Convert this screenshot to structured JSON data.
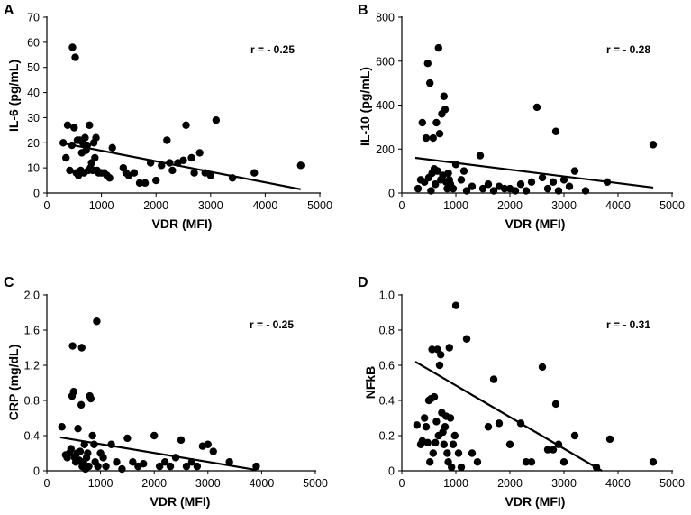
{
  "chart_data": [
    {
      "panel": "A",
      "type": "scatter",
      "xlabel": "VDR (MFI)",
      "ylabel": "IL-6 (pg/mL)",
      "xlim": [
        0,
        5000
      ],
      "ylim": [
        0,
        70
      ],
      "xticks": [
        0,
        1000,
        2000,
        3000,
        4000,
        5000
      ],
      "yticks": [
        0,
        10,
        20,
        30,
        40,
        50,
        60,
        70
      ],
      "annotation": "r = - 0.25",
      "fit_line": [
        [
          250,
          20
        ],
        [
          4650,
          1.5
        ]
      ],
      "points": [
        [
          300,
          20
        ],
        [
          350,
          14
        ],
        [
          380,
          27
        ],
        [
          420,
          9
        ],
        [
          460,
          19
        ],
        [
          470,
          58
        ],
        [
          500,
          26
        ],
        [
          520,
          54
        ],
        [
          540,
          8
        ],
        [
          560,
          21
        ],
        [
          580,
          7
        ],
        [
          600,
          21
        ],
        [
          620,
          9
        ],
        [
          640,
          16
        ],
        [
          660,
          20
        ],
        [
          680,
          8
        ],
        [
          700,
          22
        ],
        [
          720,
          17
        ],
        [
          740,
          19
        ],
        [
          760,
          9
        ],
        [
          780,
          27
        ],
        [
          800,
          10
        ],
        [
          820,
          12
        ],
        [
          840,
          9
        ],
        [
          860,
          20
        ],
        [
          880,
          14
        ],
        [
          900,
          22
        ],
        [
          920,
          9
        ],
        [
          950,
          8
        ],
        [
          1000,
          8
        ],
        [
          1050,
          8
        ],
        [
          1100,
          7
        ],
        [
          1150,
          6
        ],
        [
          1200,
          18
        ],
        [
          1400,
          10
        ],
        [
          1450,
          8
        ],
        [
          1500,
          7
        ],
        [
          1600,
          8
        ],
        [
          1700,
          4
        ],
        [
          1800,
          4
        ],
        [
          1900,
          12
        ],
        [
          2000,
          5
        ],
        [
          2100,
          11
        ],
        [
          2200,
          21
        ],
        [
          2250,
          12
        ],
        [
          2300,
          9
        ],
        [
          2400,
          12
        ],
        [
          2500,
          13
        ],
        [
          2550,
          27
        ],
        [
          2650,
          14
        ],
        [
          2700,
          8
        ],
        [
          2800,
          16
        ],
        [
          2900,
          8
        ],
        [
          3000,
          7
        ],
        [
          3100,
          29
        ],
        [
          3400,
          6
        ],
        [
          3800,
          8
        ],
        [
          4650,
          11
        ]
      ]
    },
    {
      "panel": "B",
      "type": "scatter",
      "xlabel": "VDR (MFI)",
      "ylabel": "IL-10 (pg/mL)",
      "xlim": [
        0,
        5000
      ],
      "ylim": [
        0,
        800
      ],
      "xticks": [
        0,
        1000,
        2000,
        3000,
        4000,
        5000
      ],
      "yticks": [
        0,
        200,
        400,
        600,
        800
      ],
      "annotation": "r = - 0.28",
      "fit_line": [
        [
          250,
          160
        ],
        [
          4650,
          25
        ]
      ],
      "points": [
        [
          300,
          20
        ],
        [
          350,
          60
        ],
        [
          380,
          320
        ],
        [
          420,
          50
        ],
        [
          450,
          250
        ],
        [
          480,
          590
        ],
        [
          500,
          70
        ],
        [
          520,
          500
        ],
        [
          540,
          10
        ],
        [
          560,
          90
        ],
        [
          580,
          250
        ],
        [
          600,
          110
        ],
        [
          620,
          40
        ],
        [
          640,
          320
        ],
        [
          660,
          100
        ],
        [
          680,
          660
        ],
        [
          700,
          270
        ],
        [
          720,
          60
        ],
        [
          740,
          360
        ],
        [
          760,
          80
        ],
        [
          780,
          440
        ],
        [
          800,
          380
        ],
        [
          820,
          50
        ],
        [
          840,
          20
        ],
        [
          860,
          90
        ],
        [
          880,
          60
        ],
        [
          900,
          40
        ],
        [
          950,
          20
        ],
        [
          1000,
          130
        ],
        [
          1100,
          60
        ],
        [
          1150,
          100
        ],
        [
          1200,
          10
        ],
        [
          1300,
          30
        ],
        [
          1450,
          170
        ],
        [
          1500,
          20
        ],
        [
          1600,
          40
        ],
        [
          1700,
          10
        ],
        [
          1800,
          30
        ],
        [
          1900,
          20
        ],
        [
          2000,
          20
        ],
        [
          2100,
          10
        ],
        [
          2200,
          40
        ],
        [
          2300,
          10
        ],
        [
          2400,
          50
        ],
        [
          2500,
          390
        ],
        [
          2600,
          70
        ],
        [
          2700,
          20
        ],
        [
          2800,
          50
        ],
        [
          2850,
          280
        ],
        [
          2900,
          10
        ],
        [
          3000,
          60
        ],
        [
          3100,
          30
        ],
        [
          3200,
          100
        ],
        [
          3400,
          10
        ],
        [
          3800,
          50
        ],
        [
          4650,
          220
        ]
      ]
    },
    {
      "panel": "C",
      "type": "scatter",
      "xlabel": "VDR (MFI)",
      "ylabel": "CRP (mg/dL)",
      "xlim": [
        0,
        5000
      ],
      "ylim": [
        0,
        2.0
      ],
      "xticks": [
        0,
        1000,
        2000,
        3000,
        4000,
        5000
      ],
      "yticks": [
        0,
        0.4,
        0.8,
        1.2,
        1.6,
        2.0
      ],
      "ytick_labels": [
        "0",
        "0.4",
        "0.8",
        "1.2",
        "1.6",
        "2.0"
      ],
      "annotation": "r = - 0.25",
      "fit_line": [
        [
          250,
          0.38
        ],
        [
          3900,
          0.01
        ]
      ],
      "points": [
        [
          280,
          0.5
        ],
        [
          350,
          0.18
        ],
        [
          380,
          0.15
        ],
        [
          420,
          0.2
        ],
        [
          450,
          0.25
        ],
        [
          470,
          0.85
        ],
        [
          480,
          1.42
        ],
        [
          500,
          0.9
        ],
        [
          520,
          0.15
        ],
        [
          540,
          0.1
        ],
        [
          560,
          0.2
        ],
        [
          580,
          0.48
        ],
        [
          600,
          0.12
        ],
        [
          620,
          0.22
        ],
        [
          640,
          0.75
        ],
        [
          650,
          1.4
        ],
        [
          660,
          0.05
        ],
        [
          680,
          0.1
        ],
        [
          700,
          0.3
        ],
        [
          720,
          0.02
        ],
        [
          740,
          0.15
        ],
        [
          760,
          0.2
        ],
        [
          780,
          0.05
        ],
        [
          800,
          0.85
        ],
        [
          820,
          0.82
        ],
        [
          850,
          0.4
        ],
        [
          880,
          0.3
        ],
        [
          900,
          0.1
        ],
        [
          930,
          1.7
        ],
        [
          950,
          0.05
        ],
        [
          1000,
          0.2
        ],
        [
          1050,
          0.15
        ],
        [
          1100,
          0.05
        ],
        [
          1200,
          0.3
        ],
        [
          1300,
          0.1
        ],
        [
          1400,
          0.02
        ],
        [
          1500,
          0.37
        ],
        [
          1600,
          0.1
        ],
        [
          1700,
          0.05
        ],
        [
          1800,
          0.08
        ],
        [
          2000,
          0.4
        ],
        [
          2100,
          0.05
        ],
        [
          2200,
          0.1
        ],
        [
          2300,
          0.05
        ],
        [
          2400,
          0.15
        ],
        [
          2500,
          0.35
        ],
        [
          2600,
          0.05
        ],
        [
          2700,
          0.1
        ],
        [
          2800,
          0.05
        ],
        [
          2900,
          0.28
        ],
        [
          3000,
          0.3
        ],
        [
          3100,
          0.22
        ],
        [
          3400,
          0.1
        ],
        [
          3900,
          0.05
        ]
      ]
    },
    {
      "panel": "D",
      "type": "scatter",
      "xlabel": "VDR (MFI)",
      "ylabel": "NFkB",
      "xlim": [
        0,
        5000
      ],
      "ylim": [
        0,
        1.0
      ],
      "xticks": [
        0,
        1000,
        2000,
        3000,
        4000,
        5000
      ],
      "yticks": [
        0,
        0.2,
        0.4,
        0.6,
        0.8,
        1.0
      ],
      "ytick_labels": [
        "0",
        "0.2",
        "0.4",
        "0.6",
        "0.8",
        "1.0"
      ],
      "annotation": "r = - 0.31",
      "fit_line": [
        [
          250,
          0.62
        ],
        [
          3700,
          0
        ]
      ],
      "points": [
        [
          280,
          0.26
        ],
        [
          350,
          0.15
        ],
        [
          380,
          0.17
        ],
        [
          420,
          0.3
        ],
        [
          450,
          0.25
        ],
        [
          480,
          0.16
        ],
        [
          500,
          0.4
        ],
        [
          520,
          0.05
        ],
        [
          540,
          0.41
        ],
        [
          560,
          0.69
        ],
        [
          580,
          0.1
        ],
        [
          600,
          0.42
        ],
        [
          620,
          0.16
        ],
        [
          640,
          0.28
        ],
        [
          660,
          0.69
        ],
        [
          680,
          0.2
        ],
        [
          700,
          0.6
        ],
        [
          720,
          0.66
        ],
        [
          740,
          0.33
        ],
        [
          760,
          0.22
        ],
        [
          780,
          0.15
        ],
        [
          800,
          0.25
        ],
        [
          820,
          0.31
        ],
        [
          840,
          0.1
        ],
        [
          860,
          0.05
        ],
        [
          880,
          0.7
        ],
        [
          900,
          0.3
        ],
        [
          920,
          0.02
        ],
        [
          950,
          0.15
        ],
        [
          980,
          0.2
        ],
        [
          1000,
          0.94
        ],
        [
          1050,
          0.1
        ],
        [
          1100,
          0.02
        ],
        [
          1200,
          0.75
        ],
        [
          1300,
          0.1
        ],
        [
          1400,
          0.05
        ],
        [
          1600,
          0.25
        ],
        [
          1700,
          0.52
        ],
        [
          1800,
          0.27
        ],
        [
          2000,
          0.15
        ],
        [
          2200,
          0.27
        ],
        [
          2300,
          0.05
        ],
        [
          2400,
          0.05
        ],
        [
          2600,
          0.59
        ],
        [
          2700,
          0.12
        ],
        [
          2800,
          0.12
        ],
        [
          2850,
          0.38
        ],
        [
          2900,
          0.15
        ],
        [
          3000,
          0.05
        ],
        [
          3200,
          0.2
        ],
        [
          3600,
          0.02
        ],
        [
          3850,
          0.18
        ],
        [
          4650,
          0.05
        ]
      ]
    }
  ]
}
